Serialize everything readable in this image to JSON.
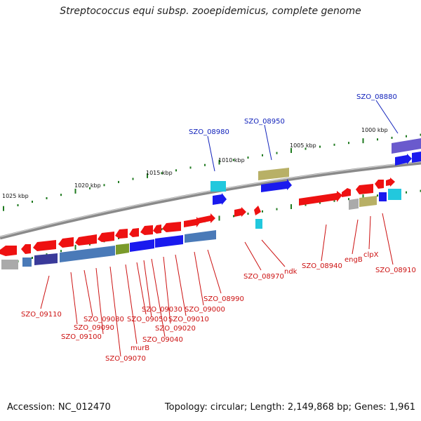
{
  "title": "Streptococcus equi subsp. zooepidemicus, complete genome",
  "accession": "Accession: NC_012470",
  "summary": "Topology: circular; Length: 2,149,868 bp; Genes: 1,961",
  "colors": {
    "forward": "#ee1111",
    "reverse_blue": "#1a1aee",
    "steel": "#4a7ab8",
    "cyan": "#22c8dd",
    "olive": "#b8b066",
    "purple": "#6a5acd",
    "grey": "#aaaaaa",
    "tick": "#1f7a1f",
    "label_red": "#cc1111",
    "label_blue": "#1122bb"
  },
  "kbp_ticks": [
    "1025 kbp",
    "1020 kbp",
    "1015 kbp",
    "1010 kbp",
    "1005 kbp",
    "1000 kbp"
  ],
  "gene_labels": [
    {
      "id": "l1",
      "text": "SZO_08880",
      "color": "blue"
    },
    {
      "id": "l2",
      "text": "SZO_08950",
      "color": "blue"
    },
    {
      "id": "l3",
      "text": "SZO_08980",
      "color": "blue"
    },
    {
      "id": "l4",
      "text": "SZO_09110",
      "color": "red"
    },
    {
      "id": "l5",
      "text": "SZO_09080",
      "color": "red"
    },
    {
      "id": "l6",
      "text": "SZO_09090",
      "color": "red"
    },
    {
      "id": "l7",
      "text": "SZO_09100",
      "color": "red"
    },
    {
      "id": "l8",
      "text": "murB",
      "color": "red"
    },
    {
      "id": "l9",
      "text": "SZO_09070",
      "color": "red"
    },
    {
      "id": "l10",
      "text": "SZO_09030",
      "color": "red"
    },
    {
      "id": "l11",
      "text": "SZO_09050",
      "color": "red"
    },
    {
      "id": "l12",
      "text": "SZO_09040",
      "color": "red"
    },
    {
      "id": "l13",
      "text": "SZO_09020",
      "color": "red"
    },
    {
      "id": "l14",
      "text": "SZO_09010",
      "color": "red"
    },
    {
      "id": "l15",
      "text": "SZO_09000",
      "color": "red"
    },
    {
      "id": "l16",
      "text": "SZO_08990",
      "color": "red"
    },
    {
      "id": "l17",
      "text": "SZO_08970",
      "color": "red"
    },
    {
      "id": "l18",
      "text": "ndk",
      "color": "red"
    },
    {
      "id": "l19",
      "text": "SZO_08940",
      "color": "red"
    },
    {
      "id": "l20",
      "text": "engB",
      "color": "red"
    },
    {
      "id": "l21",
      "text": "clpX",
      "color": "red"
    },
    {
      "id": "l22",
      "text": "SZO_08910",
      "color": "red"
    }
  ]
}
